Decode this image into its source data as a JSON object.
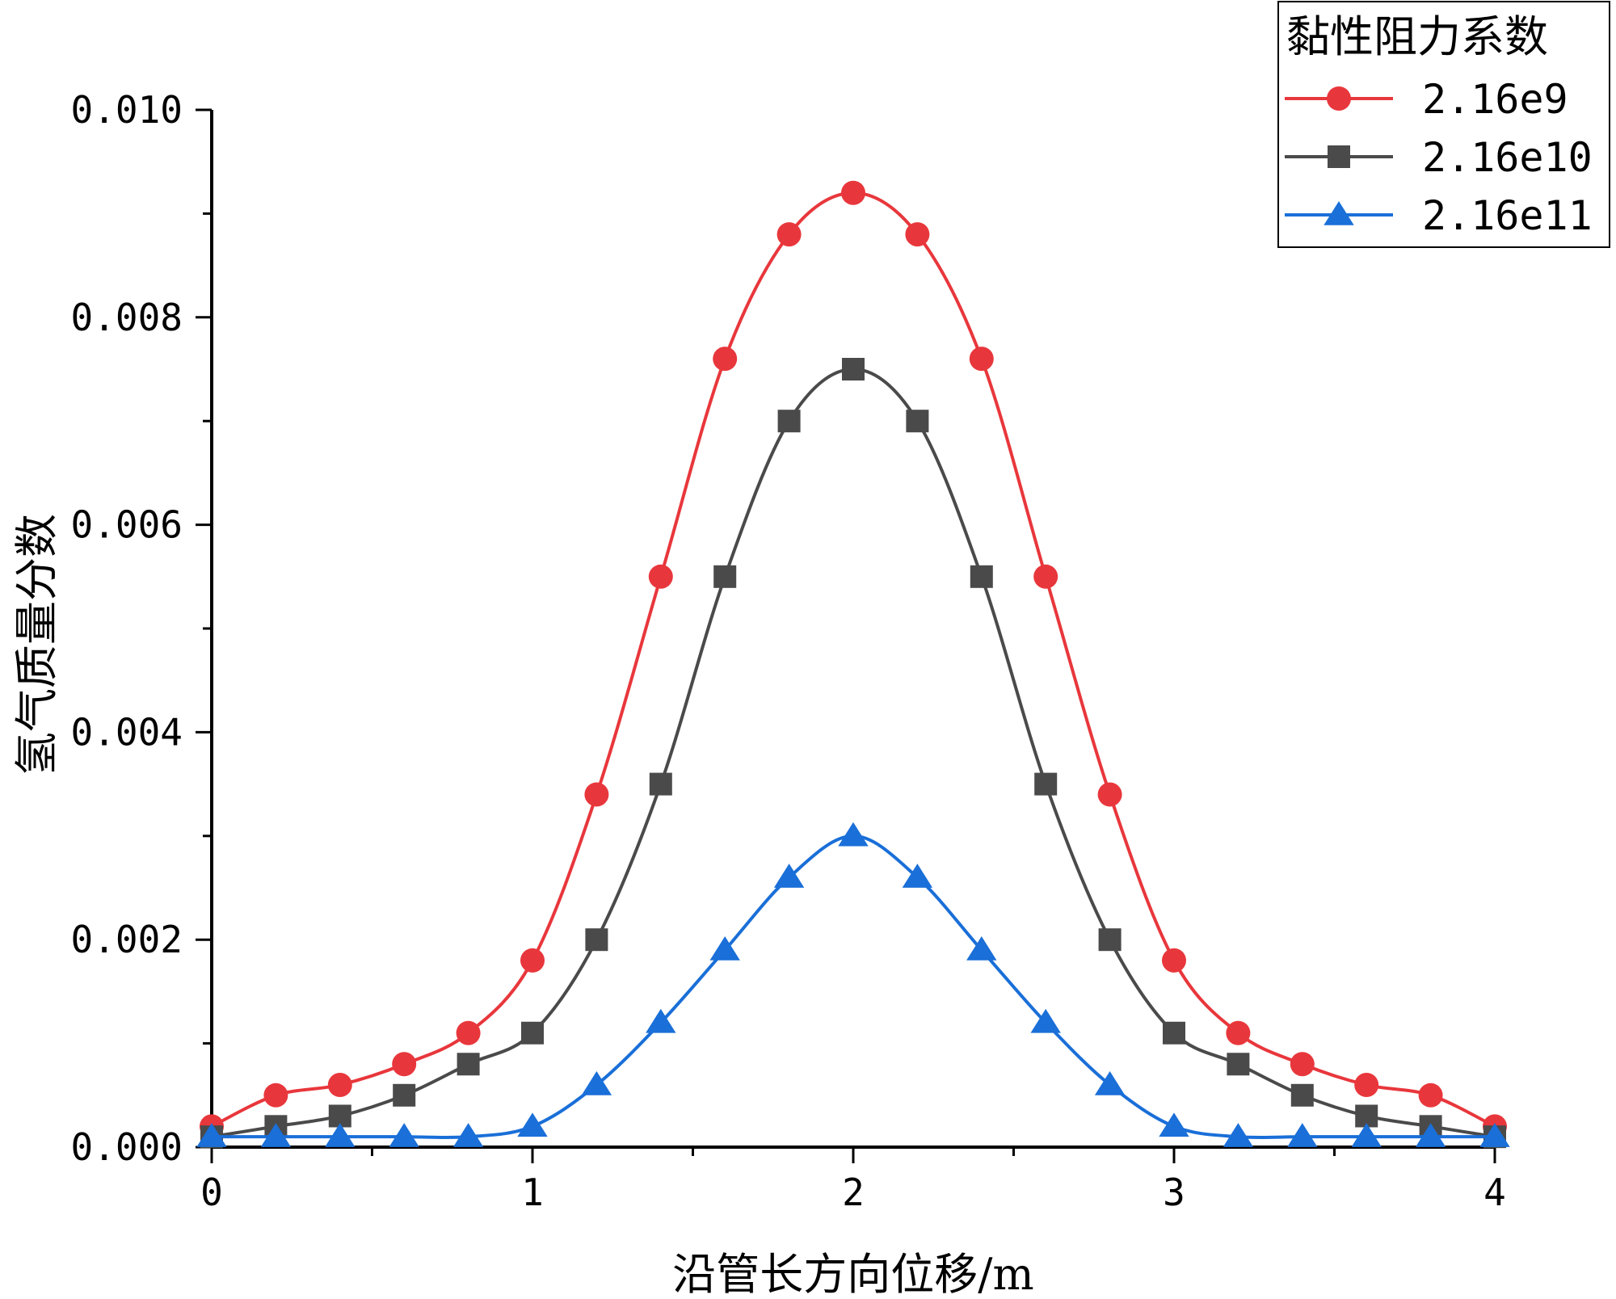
{
  "chart_data": {
    "type": "line",
    "xlabel": "沿管长方向位移/m",
    "ylabel": "氢气质量分数",
    "xlim": [
      0,
      4
    ],
    "ylim": [
      0,
      0.01
    ],
    "xticks": [
      0,
      1,
      2,
      3,
      4
    ],
    "xtick_labels": [
      "0",
      "1",
      "2",
      "3",
      "4"
    ],
    "yticks": [
      0,
      0.002,
      0.004,
      0.006,
      0.008,
      0.01
    ],
    "ytick_labels": [
      "0.000",
      "0.002",
      "0.004",
      "0.006",
      "0.008",
      "0.010"
    ],
    "grid": false,
    "legend": {
      "title": "黏性阻力系数",
      "position": "top-right"
    },
    "x": [
      0,
      0.2,
      0.4,
      0.6,
      0.8,
      1.0,
      1.2,
      1.4,
      1.6,
      1.8,
      2.0,
      2.2,
      2.4,
      2.6,
      2.8,
      3.0,
      3.2,
      3.4,
      3.6,
      3.8,
      4.0
    ],
    "series": [
      {
        "name": "2.16e9",
        "color": "#e8373c",
        "marker": "circle",
        "values": [
          0.0002,
          0.0005,
          0.0006,
          0.0008,
          0.0011,
          0.0018,
          0.0034,
          0.0055,
          0.0076,
          0.0088,
          0.0092,
          0.0088,
          0.0076,
          0.0055,
          0.0034,
          0.0018,
          0.0011,
          0.0008,
          0.0006,
          0.0005,
          0.0002
        ]
      },
      {
        "name": "2.16e10",
        "color": "#4a4a4a",
        "marker": "square",
        "values": [
          0.0001,
          0.0002,
          0.0003,
          0.0005,
          0.0008,
          0.0011,
          0.002,
          0.0035,
          0.0055,
          0.007,
          0.0075,
          0.007,
          0.0055,
          0.0035,
          0.002,
          0.0011,
          0.0008,
          0.0005,
          0.0003,
          0.0002,
          0.0001
        ]
      },
      {
        "name": "2.16e11",
        "color": "#1a6fd8",
        "marker": "triangle",
        "values": [
          0.0001,
          0.0001,
          0.0001,
          0.0001,
          0.0001,
          0.0002,
          0.0006,
          0.0012,
          0.0019,
          0.0026,
          0.003,
          0.0026,
          0.0019,
          0.0012,
          0.0006,
          0.0002,
          0.0001,
          0.0001,
          0.0001,
          0.0001,
          0.0001
        ]
      }
    ]
  }
}
